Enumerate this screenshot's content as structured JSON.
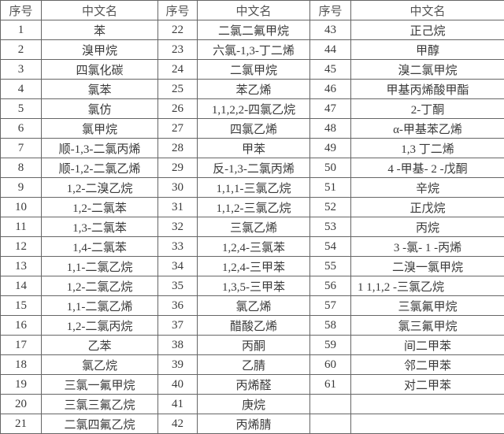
{
  "header": [
    "序号",
    "中文名",
    "序号",
    "中文名",
    "序号",
    "中文名"
  ],
  "rows": [
    [
      [
        "1",
        "苯"
      ],
      [
        "22",
        "二氯二氟甲烷"
      ],
      [
        "43",
        "正己烷"
      ]
    ],
    [
      [
        "2",
        "溴甲烷"
      ],
      [
        "23",
        "六氯-1,3-丁二烯"
      ],
      [
        "44",
        "甲醇"
      ]
    ],
    [
      [
        "3",
        "四氯化碳"
      ],
      [
        "24",
        "二氯甲烷"
      ],
      [
        "45",
        "溴二氯甲烷"
      ]
    ],
    [
      [
        "4",
        "氯苯"
      ],
      [
        "25",
        "苯乙烯"
      ],
      [
        "46",
        "甲基丙烯酸甲酯"
      ]
    ],
    [
      [
        "5",
        "氯仿"
      ],
      [
        "26",
        "1,1,2,2-四氯乙烷"
      ],
      [
        "47",
        "2-丁酮"
      ]
    ],
    [
      [
        "6",
        "氯甲烷"
      ],
      [
        "27",
        "四氯乙烯"
      ],
      [
        "48",
        "α-甲基苯乙烯"
      ]
    ],
    [
      [
        "7",
        "顺-1,3-二氯丙烯"
      ],
      [
        "28",
        "甲苯"
      ],
      [
        "49",
        "1,3 丁二烯"
      ]
    ],
    [
      [
        "8",
        "顺-1,2-二氯乙烯"
      ],
      [
        "29",
        "反-1,3-二氯丙烯"
      ],
      [
        "50",
        "4 -甲基- 2 -戊酮"
      ]
    ],
    [
      [
        "9",
        "1,2-二溴乙烷"
      ],
      [
        "30",
        "1,1,1-三氯乙烷"
      ],
      [
        "51",
        "辛烷"
      ]
    ],
    [
      [
        "10",
        "1,2-二氯苯"
      ],
      [
        "31",
        "1,1,2-三氯乙烷"
      ],
      [
        "52",
        "正戊烷"
      ]
    ],
    [
      [
        "11",
        "1,3-二氯苯"
      ],
      [
        "32",
        "三氯乙烯"
      ],
      [
        "53",
        "丙烷"
      ]
    ],
    [
      [
        "12",
        "1,4-二氯苯"
      ],
      [
        "33",
        "1,2,4-三氯苯"
      ],
      [
        "54",
        "3 -氯- 1 -丙烯"
      ]
    ],
    [
      [
        "13",
        "1,1-二氯乙烷"
      ],
      [
        "34",
        "1,2,4-三甲苯"
      ],
      [
        "55",
        "二溴一氯甲烷"
      ]
    ],
    [
      [
        "14",
        "1,2-二氯乙烷"
      ],
      [
        "35",
        "1,3,5-三甲苯"
      ],
      [
        "56",
        "1 1,1,2 -三氯乙烷"
      ]
    ],
    [
      [
        "15",
        "1,1-二氯乙烯"
      ],
      [
        "36",
        "氯乙烯"
      ],
      [
        "57",
        "三氯氟甲烷"
      ]
    ],
    [
      [
        "16",
        "1,2-二氯丙烷"
      ],
      [
        "37",
        "醋酸乙烯"
      ],
      [
        "58",
        "氯三氟甲烷"
      ]
    ],
    [
      [
        "17",
        "乙苯"
      ],
      [
        "38",
        "丙酮"
      ],
      [
        "59",
        "间二甲苯"
      ]
    ],
    [
      [
        "18",
        "氯乙烷"
      ],
      [
        "39",
        "乙腈"
      ],
      [
        "60",
        "邻二甲苯"
      ]
    ],
    [
      [
        "19",
        "三氯一氟甲烷"
      ],
      [
        "40",
        "丙烯醛"
      ],
      [
        "61",
        "对二甲苯"
      ]
    ],
    [
      [
        "20",
        "三氯三氟乙烷"
      ],
      [
        "41",
        "庚烷"
      ],
      [
        "",
        ""
      ]
    ],
    [
      [
        "21",
        "二氯四氟乙烷"
      ],
      [
        "42",
        "丙烯腈"
      ],
      [
        "",
        ""
      ]
    ]
  ]
}
